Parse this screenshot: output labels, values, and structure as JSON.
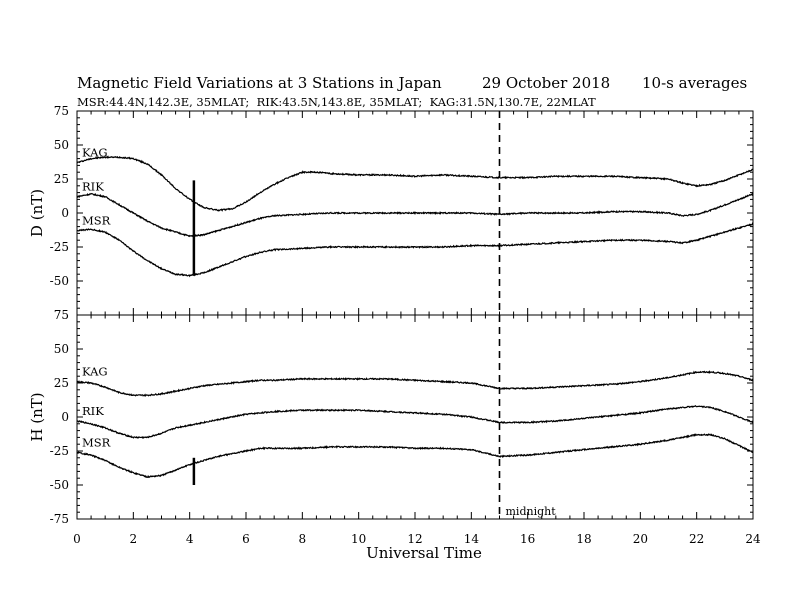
{
  "chart_data": {
    "type": "line",
    "title": "Magnetic Field Variations at 3 Stations in Japan",
    "date": "29 October 2018",
    "averaging": "10-s averages",
    "subtitle": "MSR:44.4N,142.3E, 35MLAT;  RIK:43.5N,143.8E, 35MLAT;  KAG:31.5N,130.7E, 22MLAT",
    "xlabel": "Universal Time",
    "xlim": [
      0,
      24
    ],
    "xticks": [
      "0",
      "2",
      "4",
      "6",
      "8",
      "10",
      "12",
      "14",
      "16",
      "18",
      "20",
      "22",
      "24"
    ],
    "yticks": [
      "75",
      "50",
      "25",
      "0",
      "-25",
      "-50",
      "-75"
    ],
    "annotations": {
      "midnight_label": "midnight",
      "midnight_ut": 15,
      "event_marker_ut": 4.15
    },
    "panels": [
      {
        "ylabel": "D (nT)",
        "ylim": [
          -75,
          75
        ],
        "event_marker_range": [
          -45,
          24
        ],
        "series": [
          {
            "name": "KAG",
            "x": [
              0,
              0.5,
              1,
              1.5,
              2,
              2.5,
              3,
              3.5,
              4,
              4.5,
              5,
              5.5,
              6,
              6.5,
              7,
              7.5,
              8,
              8.5,
              9,
              10,
              11,
              12,
              13,
              14,
              15,
              16,
              17,
              18,
              19,
              20,
              21,
              21.5,
              22,
              22.5,
              23,
              23.5,
              24
            ],
            "y": [
              37,
              40,
              41,
              41,
              40,
              36,
              28,
              18,
              10,
              4,
              2,
              3,
              8,
              15,
              21,
              26,
              30,
              30,
              29,
              28,
              28,
              27,
              28,
              27,
              26,
              26,
              27,
              27,
              27,
              26,
              25,
              22,
              20,
              21,
              24,
              28,
              32
            ]
          },
          {
            "name": "RIK",
            "x": [
              0,
              0.5,
              1,
              1.5,
              2,
              2.5,
              3,
              3.5,
              4,
              4.5,
              5,
              5.5,
              6,
              6.5,
              7,
              8,
              9,
              10,
              11,
              12,
              13,
              14,
              15,
              16,
              17,
              18,
              19,
              20,
              21,
              21.5,
              22,
              22.5,
              23,
              23.5,
              24
            ],
            "y": [
              12,
              14,
              12,
              6,
              0,
              -6,
              -11,
              -14,
              -17,
              -16,
              -13,
              -10,
              -7,
              -4,
              -2,
              -1,
              0,
              0,
              0,
              0,
              0,
              0,
              -1,
              0,
              0,
              0,
              1,
              1,
              0,
              -2,
              -1,
              2,
              6,
              10,
              14
            ]
          },
          {
            "name": "MSR",
            "x": [
              0,
              0.5,
              1,
              1.5,
              2,
              2.5,
              3,
              3.5,
              4,
              4.5,
              5,
              5.5,
              6,
              6.5,
              7,
              8,
              9,
              10,
              11,
              12,
              13,
              14,
              15,
              16,
              17,
              18,
              19,
              20,
              21,
              21.5,
              22,
              22.5,
              23,
              23.5,
              24
            ],
            "y": [
              -13,
              -12,
              -14,
              -20,
              -28,
              -35,
              -41,
              -45,
              -46,
              -44,
              -40,
              -36,
              -32,
              -29,
              -27,
              -26,
              -25,
              -25,
              -25,
              -25,
              -25,
              -24,
              -24,
              -23,
              -22,
              -21,
              -20,
              -20,
              -21,
              -22,
              -20,
              -17,
              -14,
              -11,
              -8
            ]
          }
        ]
      },
      {
        "ylabel": "H (nT)",
        "ylim": [
          -75,
          75
        ],
        "event_marker_range": [
          -50,
          -30
        ],
        "series": [
          {
            "name": "KAG",
            "x": [
              0,
              0.5,
              1,
              1.5,
              2,
              2.5,
              3,
              3.5,
              4,
              4.5,
              5,
              5.5,
              6,
              6.5,
              7,
              8,
              9,
              10,
              11,
              12,
              13,
              14,
              15,
              16,
              17,
              18,
              19,
              20,
              21,
              21.5,
              22,
              22.5,
              23,
              23.5,
              24
            ],
            "y": [
              26,
              25,
              22,
              18,
              16,
              16,
              17,
              19,
              21,
              23,
              24,
              25,
              26,
              27,
              27,
              28,
              28,
              28,
              28,
              27,
              26,
              25,
              21,
              21,
              22,
              23,
              24,
              26,
              29,
              31,
              33,
              33,
              32,
              30,
              27
            ]
          },
          {
            "name": "RIK",
            "x": [
              0,
              0.5,
              1,
              1.5,
              2,
              2.5,
              3,
              3.5,
              4,
              4.5,
              5,
              5.5,
              6,
              6.5,
              7,
              8,
              9,
              10,
              11,
              12,
              13,
              14,
              15,
              16,
              17,
              18,
              19,
              20,
              21,
              21.5,
              22,
              22.5,
              23,
              23.5,
              24
            ],
            "y": [
              -3,
              -5,
              -8,
              -12,
              -15,
              -15,
              -12,
              -8,
              -6,
              -4,
              -2,
              0,
              2,
              3,
              4,
              5,
              5,
              5,
              4,
              3,
              2,
              0,
              -4,
              -4,
              -3,
              -1,
              1,
              3,
              6,
              7,
              8,
              7,
              4,
              0,
              -4
            ]
          },
          {
            "name": "MSR",
            "x": [
              0,
              0.5,
              1,
              1.5,
              2,
              2.5,
              3,
              3.5,
              4,
              4.5,
              5,
              5.5,
              6,
              6.5,
              7,
              8,
              9,
              10,
              11,
              12,
              13,
              14,
              15,
              16,
              17,
              18,
              19,
              20,
              21,
              21.5,
              22,
              22.5,
              23,
              23.5,
              24
            ],
            "y": [
              -26,
              -28,
              -32,
              -37,
              -41,
              -44,
              -43,
              -39,
              -35,
              -32,
              -29,
              -27,
              -25,
              -23,
              -23,
              -23,
              -22,
              -22,
              -22,
              -23,
              -23,
              -24,
              -29,
              -28,
              -26,
              -24,
              -22,
              -20,
              -17,
              -15,
              -13,
              -13,
              -16,
              -21,
              -26
            ]
          }
        ]
      }
    ]
  }
}
